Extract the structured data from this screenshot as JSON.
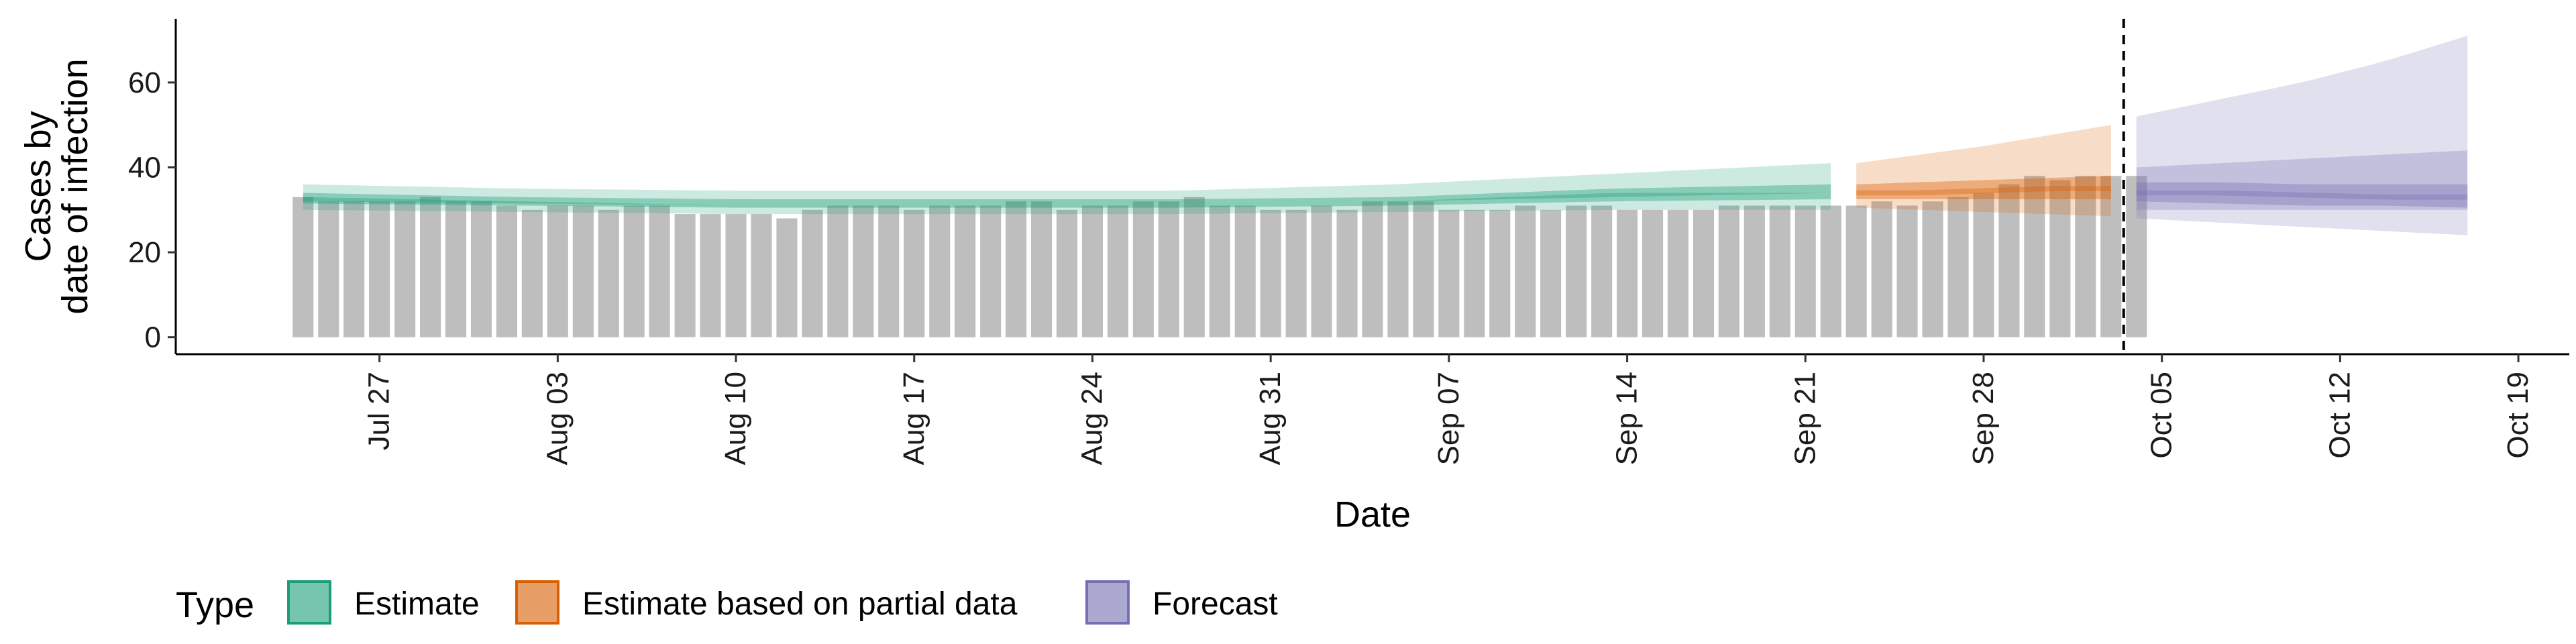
{
  "chart_data": {
    "type": "bar",
    "xlabel": "Date",
    "ylabel_lines": [
      "Cases by",
      "date of infection"
    ],
    "x_ticks": [
      "Jul 27",
      "Aug 03",
      "Aug 10",
      "Aug 17",
      "Aug 24",
      "Aug 31",
      "Sep 07",
      "Sep 14",
      "Sep 21",
      "Sep 28",
      "Oct 05",
      "Oct 12",
      "Oct 19"
    ],
    "y_ticks": [
      "0",
      "20",
      "40",
      "60"
    ],
    "ylim": [
      -4,
      75
    ],
    "xlim_dates": [
      "2020-07-19",
      "2020-10-21"
    ],
    "vline_date": "2020-10-03",
    "bars": {
      "start_date": "2020-07-24",
      "color": "#bebebe",
      "values": [
        33,
        32,
        32,
        32,
        32,
        33,
        32,
        32,
        31,
        30,
        31,
        31,
        30,
        31,
        31,
        29,
        29,
        29,
        29,
        28,
        30,
        31,
        31,
        31,
        30,
        31,
        31,
        31,
        32,
        32,
        30,
        31,
        31,
        32,
        32,
        33,
        31,
        31,
        30,
        30,
        31,
        30,
        32,
        32,
        32,
        30,
        30,
        30,
        31,
        30,
        31,
        31,
        30,
        30,
        30,
        30,
        31,
        31,
        31,
        31,
        31,
        31,
        32,
        31,
        32,
        33,
        34,
        36,
        38,
        37,
        38,
        38,
        38
      ]
    },
    "legend_title": "Type",
    "legend": [
      {
        "label": "Estimate",
        "fill": "#1b9e77",
        "border": "#1b9e77"
      },
      {
        "label": "Estimate based on partial data",
        "fill": "#d95f02",
        "border": "#d95f02"
      },
      {
        "label": "Forecast",
        "fill": "#7570b3",
        "border": "#7570b3"
      }
    ],
    "series": [
      {
        "name": "Estimate",
        "color": "#1b9e77",
        "start_date": "2020-07-24",
        "end_date": "2020-09-22",
        "median": [
          [
            33,
            32
          ],
          [
            32,
            31.5
          ],
          [
            31,
            31
          ],
          [
            31,
            31
          ],
          [
            31,
            31
          ],
          [
            32,
            32
          ],
          [
            33,
            34
          ],
          [
            34,
            34
          ]
        ],
        "band50": [
          [
            31.5,
            34
          ],
          [
            31,
            33
          ],
          [
            30.5,
            32.5
          ],
          [
            30.5,
            32.5
          ],
          [
            30.5,
            32.5
          ],
          [
            31,
            33
          ],
          [
            32,
            35
          ],
          [
            32.5,
            36
          ]
        ],
        "band90": [
          [
            30,
            36
          ],
          [
            29.5,
            35
          ],
          [
            29,
            34.5
          ],
          [
            29,
            34.5
          ],
          [
            29,
            34.5
          ],
          [
            29.5,
            36
          ],
          [
            30,
            38.5
          ],
          [
            30,
            41
          ]
        ]
      },
      {
        "name": "Estimate based on partial data",
        "color": "#d95f02",
        "start_date": "2020-09-23",
        "end_date": "2020-10-03",
        "median": [
          34,
          34,
          34.5,
          35,
          35
        ],
        "band50": [
          [
            32.5,
            36
          ],
          [
            32.5,
            36.5
          ],
          [
            32.5,
            37
          ],
          [
            32.5,
            37.5
          ],
          [
            32.5,
            38
          ]
        ],
        "band90": [
          [
            30.5,
            41
          ],
          [
            30,
            43
          ],
          [
            29.5,
            45
          ],
          [
            29,
            47.5
          ],
          [
            28.5,
            50
          ]
        ]
      },
      {
        "name": "Forecast",
        "color": "#7570b3",
        "start_date": "2020-10-04",
        "end_date": "2020-10-17",
        "median": [
          34,
          34,
          33.5,
          33,
          33
        ],
        "band50": [
          [
            32,
            36.5
          ],
          [
            31.5,
            36.5
          ],
          [
            31,
            36
          ],
          [
            31,
            36
          ],
          [
            30.5,
            36
          ]
        ],
        "band75": [
          [
            30,
            40
          ],
          [
            30,
            41
          ],
          [
            30,
            42
          ],
          [
            30,
            43
          ],
          [
            30,
            44
          ]
        ],
        "band90": [
          [
            28,
            52
          ],
          [
            27,
            56
          ],
          [
            26,
            60
          ],
          [
            25,
            65
          ],
          [
            24,
            71
          ]
        ]
      }
    ]
  }
}
